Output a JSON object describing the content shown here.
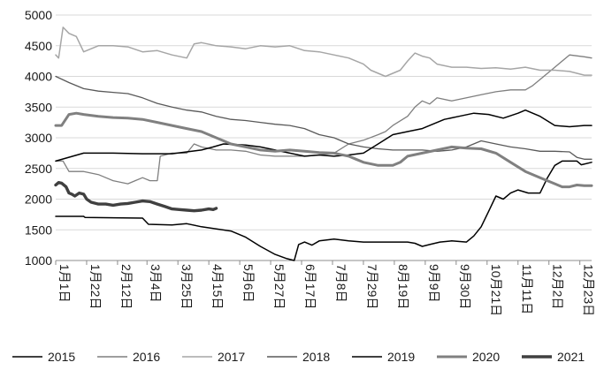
{
  "chart_data": {
    "type": "line",
    "title": "",
    "xlabel": "",
    "ylabel": "",
    "ylim": [
      1000,
      5000
    ],
    "yticks": [
      "5000",
      "4500",
      "4000",
      "3500",
      "3000",
      "2500",
      "2000",
      "1500",
      "1000"
    ],
    "xticks": [
      "1月1日",
      "1月22日",
      "2月12日",
      "3月4日",
      "3月25日",
      "4月15日",
      "5月6日",
      "5月27日",
      "6月17日",
      "7月8日",
      "7月29日",
      "8月19日",
      "9月9日",
      "9月30日",
      "10月21日",
      "11月11日",
      "12月2日",
      "12月23日"
    ],
    "x_day_of_year_ticks": [
      1,
      22,
      43,
      63,
      84,
      105,
      126,
      147,
      168,
      189,
      210,
      231,
      252,
      273,
      294,
      315,
      336,
      357
    ],
    "grid": "horizontal",
    "legend_position": "bottom",
    "series": [
      {
        "name": "2015",
        "color": "#000000",
        "width": 1.5,
        "points": [
          [
            1,
            1720
          ],
          [
            20,
            1720
          ],
          [
            21,
            1700
          ],
          [
            60,
            1690
          ],
          [
            64,
            1590
          ],
          [
            80,
            1580
          ],
          [
            90,
            1600
          ],
          [
            100,
            1550
          ],
          [
            120,
            1480
          ],
          [
            130,
            1380
          ],
          [
            140,
            1230
          ],
          [
            150,
            1100
          ],
          [
            158,
            1030
          ],
          [
            163,
            1000
          ],
          [
            166,
            1260
          ],
          [
            170,
            1300
          ],
          [
            175,
            1250
          ],
          [
            180,
            1320
          ],
          [
            190,
            1350
          ],
          [
            200,
            1320
          ],
          [
            210,
            1300
          ],
          [
            220,
            1300
          ],
          [
            240,
            1300
          ],
          [
            245,
            1280
          ],
          [
            250,
            1230
          ],
          [
            255,
            1260
          ],
          [
            262,
            1300
          ],
          [
            270,
            1320
          ],
          [
            280,
            1300
          ],
          [
            285,
            1400
          ],
          [
            290,
            1550
          ],
          [
            295,
            1800
          ],
          [
            300,
            2050
          ],
          [
            305,
            2000
          ],
          [
            310,
            2100
          ],
          [
            315,
            2150
          ],
          [
            322,
            2100
          ],
          [
            330,
            2100
          ],
          [
            335,
            2350
          ],
          [
            340,
            2550
          ],
          [
            345,
            2620
          ],
          [
            355,
            2620
          ],
          [
            358,
            2560
          ],
          [
            365,
            2600
          ]
        ]
      },
      {
        "name": "2016",
        "color": "#7f7f7f",
        "width": 1.3,
        "points": [
          [
            1,
            2620
          ],
          [
            6,
            2620
          ],
          [
            10,
            2450
          ],
          [
            20,
            2450
          ],
          [
            30,
            2400
          ],
          [
            40,
            2300
          ],
          [
            50,
            2250
          ],
          [
            55,
            2300
          ],
          [
            60,
            2350
          ],
          [
            65,
            2300
          ],
          [
            70,
            2300
          ],
          [
            72,
            2700
          ],
          [
            80,
            2750
          ],
          [
            90,
            2750
          ],
          [
            95,
            2900
          ],
          [
            100,
            2850
          ],
          [
            110,
            2800
          ],
          [
            120,
            2800
          ],
          [
            130,
            2780
          ],
          [
            140,
            2720
          ],
          [
            150,
            2700
          ],
          [
            170,
            2700
          ],
          [
            180,
            2720
          ],
          [
            190,
            2750
          ],
          [
            200,
            2900
          ],
          [
            210,
            2960
          ],
          [
            220,
            3050
          ],
          [
            225,
            3100
          ],
          [
            230,
            3200
          ],
          [
            240,
            3350
          ],
          [
            245,
            3500
          ],
          [
            250,
            3600
          ],
          [
            255,
            3550
          ],
          [
            260,
            3650
          ],
          [
            270,
            3600
          ],
          [
            280,
            3650
          ],
          [
            290,
            3700
          ],
          [
            300,
            3750
          ],
          [
            310,
            3780
          ],
          [
            320,
            3780
          ],
          [
            325,
            3850
          ],
          [
            330,
            3950
          ],
          [
            340,
            4150
          ],
          [
            350,
            4350
          ],
          [
            360,
            4320
          ],
          [
            365,
            4300
          ]
        ]
      },
      {
        "name": "2017",
        "color": "#a6a6a6",
        "width": 1.5,
        "points": [
          [
            1,
            4350
          ],
          [
            3,
            4300
          ],
          [
            6,
            4800
          ],
          [
            10,
            4700
          ],
          [
            15,
            4650
          ],
          [
            20,
            4400
          ],
          [
            30,
            4500
          ],
          [
            40,
            4500
          ],
          [
            50,
            4480
          ],
          [
            60,
            4400
          ],
          [
            70,
            4420
          ],
          [
            80,
            4350
          ],
          [
            90,
            4300
          ],
          [
            95,
            4530
          ],
          [
            100,
            4550
          ],
          [
            110,
            4500
          ],
          [
            120,
            4480
          ],
          [
            130,
            4450
          ],
          [
            140,
            4500
          ],
          [
            150,
            4480
          ],
          [
            160,
            4500
          ],
          [
            170,
            4420
          ],
          [
            180,
            4400
          ],
          [
            190,
            4350
          ],
          [
            200,
            4300
          ],
          [
            210,
            4200
          ],
          [
            215,
            4100
          ],
          [
            225,
            4000
          ],
          [
            235,
            4100
          ],
          [
            240,
            4250
          ],
          [
            245,
            4380
          ],
          [
            250,
            4330
          ],
          [
            255,
            4300
          ],
          [
            260,
            4200
          ],
          [
            270,
            4150
          ],
          [
            280,
            4150
          ],
          [
            290,
            4130
          ],
          [
            300,
            4140
          ],
          [
            310,
            4120
          ],
          [
            320,
            4150
          ],
          [
            330,
            4100
          ],
          [
            340,
            4100
          ],
          [
            350,
            4080
          ],
          [
            360,
            4020
          ],
          [
            365,
            4020
          ]
        ]
      },
      {
        "name": "2018",
        "color": "#595959",
        "width": 1.3,
        "points": [
          [
            1,
            4000
          ],
          [
            10,
            3900
          ],
          [
            20,
            3800
          ],
          [
            30,
            3760
          ],
          [
            40,
            3740
          ],
          [
            50,
            3720
          ],
          [
            60,
            3650
          ],
          [
            70,
            3560
          ],
          [
            80,
            3500
          ],
          [
            90,
            3450
          ],
          [
            100,
            3420
          ],
          [
            110,
            3350
          ],
          [
            120,
            3300
          ],
          [
            130,
            3280
          ],
          [
            140,
            3250
          ],
          [
            150,
            3220
          ],
          [
            160,
            3200
          ],
          [
            170,
            3150
          ],
          [
            180,
            3050
          ],
          [
            190,
            3000
          ],
          [
            200,
            2900
          ],
          [
            210,
            2850
          ],
          [
            220,
            2820
          ],
          [
            230,
            2800
          ],
          [
            240,
            2800
          ],
          [
            250,
            2800
          ],
          [
            260,
            2780
          ],
          [
            270,
            2800
          ],
          [
            280,
            2850
          ],
          [
            290,
            2950
          ],
          [
            300,
            2900
          ],
          [
            310,
            2850
          ],
          [
            320,
            2820
          ],
          [
            330,
            2780
          ],
          [
            340,
            2780
          ],
          [
            350,
            2770
          ],
          [
            355,
            2680
          ],
          [
            360,
            2650
          ],
          [
            365,
            2650
          ]
        ]
      },
      {
        "name": "2019",
        "color": "#000000",
        "width": 1.5,
        "points": [
          [
            1,
            2620
          ],
          [
            20,
            2750
          ],
          [
            40,
            2750
          ],
          [
            60,
            2740
          ],
          [
            80,
            2740
          ],
          [
            100,
            2800
          ],
          [
            108,
            2850
          ],
          [
            115,
            2900
          ],
          [
            130,
            2880
          ],
          [
            140,
            2850
          ],
          [
            150,
            2800
          ],
          [
            160,
            2750
          ],
          [
            170,
            2700
          ],
          [
            180,
            2720
          ],
          [
            190,
            2700
          ],
          [
            200,
            2720
          ],
          [
            210,
            2750
          ],
          [
            220,
            2900
          ],
          [
            230,
            3050
          ],
          [
            240,
            3100
          ],
          [
            250,
            3150
          ],
          [
            255,
            3200
          ],
          [
            265,
            3300
          ],
          [
            275,
            3350
          ],
          [
            285,
            3400
          ],
          [
            295,
            3380
          ],
          [
            305,
            3320
          ],
          [
            315,
            3400
          ],
          [
            320,
            3450
          ],
          [
            330,
            3350
          ],
          [
            340,
            3200
          ],
          [
            350,
            3180
          ],
          [
            360,
            3200
          ],
          [
            365,
            3200
          ]
        ]
      },
      {
        "name": "2020",
        "color": "#808080",
        "width": 3,
        "points": [
          [
            1,
            3200
          ],
          [
            5,
            3200
          ],
          [
            10,
            3380
          ],
          [
            15,
            3400
          ],
          [
            20,
            3380
          ],
          [
            30,
            3350
          ],
          [
            40,
            3330
          ],
          [
            50,
            3320
          ],
          [
            60,
            3300
          ],
          [
            70,
            3250
          ],
          [
            80,
            3200
          ],
          [
            90,
            3150
          ],
          [
            100,
            3100
          ],
          [
            110,
            3000
          ],
          [
            120,
            2900
          ],
          [
            130,
            2850
          ],
          [
            140,
            2800
          ],
          [
            150,
            2780
          ],
          [
            160,
            2800
          ],
          [
            170,
            2780
          ],
          [
            180,
            2760
          ],
          [
            190,
            2750
          ],
          [
            200,
            2700
          ],
          [
            205,
            2650
          ],
          [
            210,
            2600
          ],
          [
            220,
            2550
          ],
          [
            230,
            2550
          ],
          [
            235,
            2600
          ],
          [
            240,
            2700
          ],
          [
            250,
            2750
          ],
          [
            260,
            2800
          ],
          [
            270,
            2850
          ],
          [
            280,
            2830
          ],
          [
            290,
            2820
          ],
          [
            300,
            2750
          ],
          [
            310,
            2600
          ],
          [
            320,
            2450
          ],
          [
            330,
            2350
          ],
          [
            340,
            2250
          ],
          [
            345,
            2200
          ],
          [
            350,
            2200
          ],
          [
            355,
            2230
          ],
          [
            360,
            2220
          ],
          [
            365,
            2220
          ]
        ]
      },
      {
        "name": "2021",
        "color": "#404040",
        "width": 3.4,
        "points": [
          [
            1,
            2230
          ],
          [
            3,
            2270
          ],
          [
            5,
            2260
          ],
          [
            8,
            2200
          ],
          [
            10,
            2100
          ],
          [
            12,
            2080
          ],
          [
            14,
            2050
          ],
          [
            17,
            2100
          ],
          [
            20,
            2080
          ],
          [
            22,
            2000
          ],
          [
            25,
            1950
          ],
          [
            30,
            1920
          ],
          [
            35,
            1920
          ],
          [
            40,
            1900
          ],
          [
            45,
            1920
          ],
          [
            50,
            1930
          ],
          [
            55,
            1950
          ],
          [
            60,
            1970
          ],
          [
            65,
            1960
          ],
          [
            70,
            1920
          ],
          [
            75,
            1880
          ],
          [
            80,
            1840
          ],
          [
            85,
            1830
          ],
          [
            90,
            1820
          ],
          [
            95,
            1810
          ],
          [
            100,
            1820
          ],
          [
            105,
            1840
          ],
          [
            108,
            1830
          ],
          [
            110,
            1850
          ]
        ]
      }
    ]
  }
}
